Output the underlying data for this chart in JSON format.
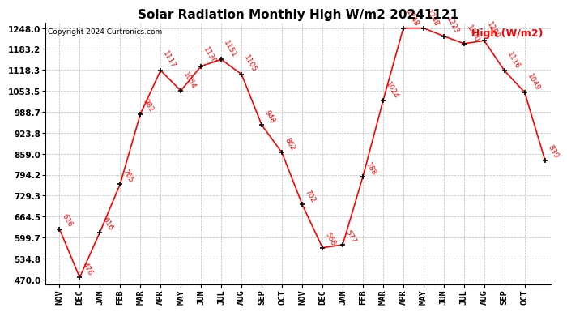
{
  "months_labels": [
    "NOV",
    "DEC",
    "JAN",
    "FEB",
    "MAR",
    "APR",
    "MAY",
    "JUN",
    "JUL",
    "AUG",
    "SEP",
    "OCT",
    "NOV",
    "DEC",
    "JAN",
    "FEB",
    "MAR",
    "APR",
    "MAY",
    "JUN",
    "JUL",
    "AUG",
    "SEP",
    "OCT"
  ],
  "x_data": [
    0,
    1,
    2,
    3,
    4,
    5,
    6,
    7,
    8,
    9,
    10,
    11,
    12,
    13,
    14,
    15,
    16,
    17,
    18,
    19,
    20,
    21,
    22,
    23,
    24
  ],
  "y_data": [
    626,
    476,
    616,
    765,
    982,
    1117,
    1054,
    1130,
    1151,
    1105,
    948,
    862,
    702,
    568,
    577,
    788,
    1024,
    1248,
    1248,
    1223,
    1200,
    1209,
    1116,
    1049,
    839
  ],
  "point_labels": [
    "626",
    "476",
    "616",
    "765",
    "982",
    "1117",
    "1054",
    "1130",
    "1151",
    "1105",
    "948",
    "862",
    "702",
    "568",
    "577",
    "788",
    "1024",
    "1248",
    "1248",
    "1223",
    "1200",
    "1209",
    "1116",
    "1049",
    "839"
  ],
  "title": "Solar Radiation Monthly High W/m2 20241121",
  "legend_label": "High (W/m2)",
  "copyright": "Copyright 2024 Curtronics.com",
  "line_color": "red",
  "marker_color": "black",
  "text_color": "red",
  "background_color": "white",
  "grid_color": "#aaaaaa",
  "ylim_min": 455,
  "ylim_max": 1265,
  "yticks": [
    470.0,
    534.8,
    599.7,
    664.5,
    729.3,
    794.2,
    859.0,
    923.8,
    988.7,
    1053.5,
    1118.3,
    1183.2,
    1248.0
  ],
  "ytick_labels": [
    "470.0",
    "534.8",
    "599.7",
    "664.5",
    "729.3",
    "794.2",
    "859.0",
    "923.8",
    "988.7",
    "1053.5",
    "1118.3",
    "1183.2",
    "1248.0"
  ],
  "title_fontsize": 11,
  "label_fontsize": 6.5,
  "tick_fontsize": 7.5,
  "copyright_fontsize": 6.5,
  "legend_fontsize": 9
}
